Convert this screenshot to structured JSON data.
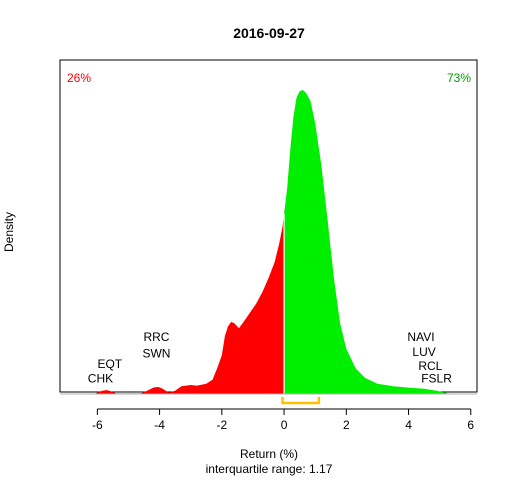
{
  "chart_data": {
    "type": "area",
    "title": "2016-09-27",
    "xlabel": "Return (%)",
    "ylabel": "Density",
    "subtitle": "interquartile range: 1.17",
    "xlim": [
      -7.2,
      6.2
    ],
    "ylim": [
      0,
      0.5
    ],
    "x_ticks": [
      -6,
      -4,
      -2,
      0,
      2,
      4,
      6
    ],
    "pct_negative": "26%",
    "pct_positive": "73%",
    "negative_color": "#ff0000",
    "positive_color": "#00ee00",
    "iqr_color": "#ffc000",
    "iqr_range": [
      -0.05,
      1.12
    ],
    "curve": [
      [
        -6.1,
        0.0
      ],
      [
        -6.0,
        0.002
      ],
      [
        -5.85,
        0.005
      ],
      [
        -5.7,
        0.006
      ],
      [
        -5.55,
        0.004
      ],
      [
        -5.4,
        0.001
      ],
      [
        -5.0,
        0.001
      ],
      [
        -4.6,
        0.001
      ],
      [
        -4.4,
        0.005
      ],
      [
        -4.2,
        0.01
      ],
      [
        -4.05,
        0.011
      ],
      [
        -3.9,
        0.008
      ],
      [
        -3.7,
        0.002
      ],
      [
        -3.5,
        0.005
      ],
      [
        -3.3,
        0.012
      ],
      [
        -3.0,
        0.014
      ],
      [
        -2.8,
        0.013
      ],
      [
        -2.5,
        0.016
      ],
      [
        -2.3,
        0.022
      ],
      [
        -2.15,
        0.04
      ],
      [
        -2.0,
        0.06
      ],
      [
        -1.9,
        0.09
      ],
      [
        -1.8,
        0.105
      ],
      [
        -1.7,
        0.112
      ],
      [
        -1.6,
        0.11
      ],
      [
        -1.45,
        0.102
      ],
      [
        -1.3,
        0.112
      ],
      [
        -1.1,
        0.126
      ],
      [
        -0.9,
        0.14
      ],
      [
        -0.7,
        0.158
      ],
      [
        -0.5,
        0.18
      ],
      [
        -0.3,
        0.205
      ],
      [
        -0.15,
        0.235
      ],
      [
        -0.05,
        0.26
      ],
      [
        0.0,
        0.28
      ],
      [
        0.1,
        0.32
      ],
      [
        0.2,
        0.38
      ],
      [
        0.3,
        0.43
      ],
      [
        0.4,
        0.46
      ],
      [
        0.5,
        0.47
      ],
      [
        0.6,
        0.472
      ],
      [
        0.7,
        0.468
      ],
      [
        0.85,
        0.455
      ],
      [
        1.0,
        0.42
      ],
      [
        1.2,
        0.355
      ],
      [
        1.4,
        0.27
      ],
      [
        1.6,
        0.18
      ],
      [
        1.8,
        0.11
      ],
      [
        2.0,
        0.07
      ],
      [
        2.3,
        0.04
      ],
      [
        2.6,
        0.025
      ],
      [
        3.0,
        0.016
      ],
      [
        3.5,
        0.012
      ],
      [
        4.0,
        0.01
      ],
      [
        4.5,
        0.008
      ],
      [
        4.9,
        0.005
      ],
      [
        5.2,
        0.002
      ],
      [
        5.3,
        0.0
      ]
    ],
    "annotations_left": [
      {
        "label": "RRC",
        "x": -4.1,
        "y": 0.082
      },
      {
        "label": "SWN",
        "x": -4.1,
        "y": 0.057
      },
      {
        "label": "EQT",
        "x": -5.6,
        "y": 0.04
      },
      {
        "label": "CHK",
        "x": -5.9,
        "y": 0.018
      }
    ],
    "annotations_right": [
      {
        "label": "NAVI",
        "x": 4.4,
        "y": 0.082
      },
      {
        "label": "LUV",
        "x": 4.5,
        "y": 0.059
      },
      {
        "label": "RCL",
        "x": 4.7,
        "y": 0.037
      },
      {
        "label": "FSLR",
        "x": 4.9,
        "y": 0.018
      }
    ]
  }
}
